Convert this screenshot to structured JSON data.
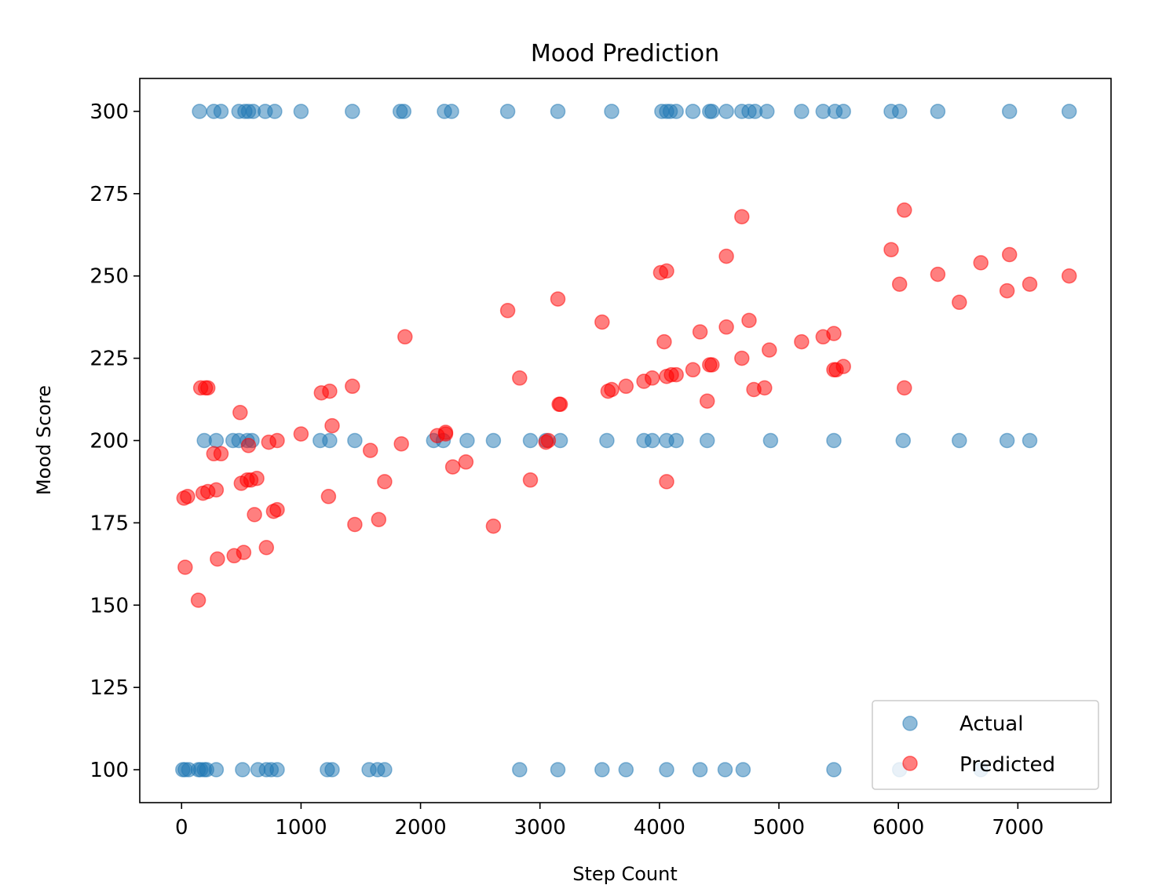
{
  "chart_data": {
    "type": "scatter",
    "title": "Mood Prediction",
    "xlabel": "Step Count",
    "ylabel": "Mood Score",
    "xlim": [
      -350,
      7780
    ],
    "ylim": [
      90,
      310
    ],
    "xticks": [
      0,
      1000,
      2000,
      3000,
      4000,
      5000,
      6000,
      7000
    ],
    "yticks": [
      100,
      125,
      150,
      175,
      200,
      225,
      250,
      275,
      300
    ],
    "grid": false,
    "legend": {
      "placement": "lower-right"
    },
    "series": [
      {
        "name": "Actual",
        "color": "#1f77b4",
        "points": [
          [
            150,
            300
          ],
          [
            270,
            300
          ],
          [
            330,
            300
          ],
          [
            480,
            300
          ],
          [
            530,
            300
          ],
          [
            560,
            300
          ],
          [
            600,
            300
          ],
          [
            700,
            300
          ],
          [
            780,
            300
          ],
          [
            1000,
            300
          ],
          [
            1430,
            300
          ],
          [
            1830,
            300
          ],
          [
            1860,
            300
          ],
          [
            2200,
            300
          ],
          [
            2260,
            300
          ],
          [
            2730,
            300
          ],
          [
            3150,
            300
          ],
          [
            3600,
            300
          ],
          [
            4020,
            300
          ],
          [
            4060,
            300
          ],
          [
            4090,
            300
          ],
          [
            4140,
            300
          ],
          [
            4280,
            300
          ],
          [
            4420,
            300
          ],
          [
            4440,
            300
          ],
          [
            4560,
            300
          ],
          [
            4690,
            300
          ],
          [
            4750,
            300
          ],
          [
            4800,
            300
          ],
          [
            4900,
            300
          ],
          [
            5190,
            300
          ],
          [
            5370,
            300
          ],
          [
            5470,
            300
          ],
          [
            5540,
            300
          ],
          [
            5940,
            300
          ],
          [
            6010,
            300
          ],
          [
            6330,
            300
          ],
          [
            6930,
            300
          ],
          [
            7430,
            300
          ],
          [
            190,
            200
          ],
          [
            290,
            200
          ],
          [
            430,
            200
          ],
          [
            480,
            200
          ],
          [
            550,
            200
          ],
          [
            590,
            200
          ],
          [
            1160,
            200
          ],
          [
            1240,
            200
          ],
          [
            1450,
            200
          ],
          [
            2110,
            200
          ],
          [
            2190,
            200
          ],
          [
            2390,
            200
          ],
          [
            2610,
            200
          ],
          [
            2920,
            200
          ],
          [
            3050,
            200
          ],
          [
            3170,
            200
          ],
          [
            3560,
            200
          ],
          [
            3870,
            200
          ],
          [
            3940,
            200
          ],
          [
            4060,
            200
          ],
          [
            4140,
            200
          ],
          [
            4400,
            200
          ],
          [
            4930,
            200
          ],
          [
            5460,
            200
          ],
          [
            6040,
            200
          ],
          [
            6510,
            200
          ],
          [
            6910,
            200
          ],
          [
            7100,
            200
          ],
          [
            10,
            100
          ],
          [
            30,
            100
          ],
          [
            60,
            100
          ],
          [
            140,
            100
          ],
          [
            160,
            100
          ],
          [
            190,
            100
          ],
          [
            210,
            100
          ],
          [
            290,
            100
          ],
          [
            510,
            100
          ],
          [
            640,
            100
          ],
          [
            710,
            100
          ],
          [
            750,
            100
          ],
          [
            800,
            100
          ],
          [
            1220,
            100
          ],
          [
            1260,
            100
          ],
          [
            1570,
            100
          ],
          [
            1640,
            100
          ],
          [
            1700,
            100
          ],
          [
            2830,
            100
          ],
          [
            3150,
            100
          ],
          [
            3520,
            100
          ],
          [
            3720,
            100
          ],
          [
            4060,
            100
          ],
          [
            4340,
            100
          ],
          [
            4550,
            100
          ],
          [
            4700,
            100
          ],
          [
            5460,
            100
          ],
          [
            6010,
            100
          ],
          [
            6690,
            100
          ]
        ]
      },
      {
        "name": "Predicted",
        "color": "#ff0000",
        "points": [
          [
            20,
            182.5
          ],
          [
            50,
            183
          ],
          [
            30,
            161.5
          ],
          [
            140,
            151.5
          ],
          [
            160,
            216
          ],
          [
            200,
            216
          ],
          [
            220,
            216
          ],
          [
            180,
            184
          ],
          [
            220,
            184.5
          ],
          [
            290,
            185
          ],
          [
            270,
            196
          ],
          [
            330,
            196
          ],
          [
            300,
            164
          ],
          [
            440,
            165
          ],
          [
            520,
            166
          ],
          [
            490,
            208.5
          ],
          [
            500,
            187
          ],
          [
            550,
            188
          ],
          [
            580,
            188
          ],
          [
            560,
            198.5
          ],
          [
            630,
            188.5
          ],
          [
            610,
            177.5
          ],
          [
            710,
            167.5
          ],
          [
            730,
            199.5
          ],
          [
            800,
            200
          ],
          [
            770,
            178.5
          ],
          [
            800,
            179
          ],
          [
            1000,
            202
          ],
          [
            1170,
            214.5
          ],
          [
            1240,
            215
          ],
          [
            1260,
            204.5
          ],
          [
            1230,
            183
          ],
          [
            1430,
            216.5
          ],
          [
            1450,
            174.5
          ],
          [
            1580,
            197
          ],
          [
            1650,
            176
          ],
          [
            1700,
            187.5
          ],
          [
            1840,
            199
          ],
          [
            1870,
            231.5
          ],
          [
            2140,
            201.5
          ],
          [
            2210,
            202.5
          ],
          [
            2210,
            202
          ],
          [
            2270,
            192
          ],
          [
            2380,
            193.5
          ],
          [
            2610,
            174
          ],
          [
            2730,
            239.5
          ],
          [
            2830,
            219
          ],
          [
            2920,
            188
          ],
          [
            3050,
            199.5
          ],
          [
            3070,
            200
          ],
          [
            3150,
            243
          ],
          [
            3160,
            211
          ],
          [
            3170,
            211
          ],
          [
            3520,
            236
          ],
          [
            3570,
            215
          ],
          [
            3600,
            215.5
          ],
          [
            3720,
            216.5
          ],
          [
            3870,
            218
          ],
          [
            3940,
            219
          ],
          [
            4010,
            251
          ],
          [
            4060,
            251.5
          ],
          [
            4040,
            230
          ],
          [
            4060,
            219.5
          ],
          [
            4100,
            220
          ],
          [
            4140,
            220
          ],
          [
            4060,
            187.5
          ],
          [
            4280,
            221.5
          ],
          [
            4340,
            233
          ],
          [
            4400,
            212
          ],
          [
            4420,
            223
          ],
          [
            4440,
            223
          ],
          [
            4560,
            256
          ],
          [
            4560,
            234.5
          ],
          [
            4690,
            268
          ],
          [
            4690,
            225
          ],
          [
            4750,
            236.5
          ],
          [
            4790,
            215.5
          ],
          [
            4880,
            216
          ],
          [
            4920,
            227.5
          ],
          [
            5190,
            230
          ],
          [
            5370,
            231.5
          ],
          [
            5460,
            232.5
          ],
          [
            5460,
            221.5
          ],
          [
            5480,
            221.5
          ],
          [
            5540,
            222.5
          ],
          [
            5940,
            258
          ],
          [
            6010,
            247.5
          ],
          [
            6050,
            270
          ],
          [
            6050,
            216
          ],
          [
            6330,
            250.5
          ],
          [
            6510,
            242
          ],
          [
            6690,
            254
          ],
          [
            6910,
            245.5
          ],
          [
            6930,
            256.5
          ],
          [
            7100,
            247.5
          ],
          [
            7430,
            250
          ]
        ]
      }
    ]
  }
}
